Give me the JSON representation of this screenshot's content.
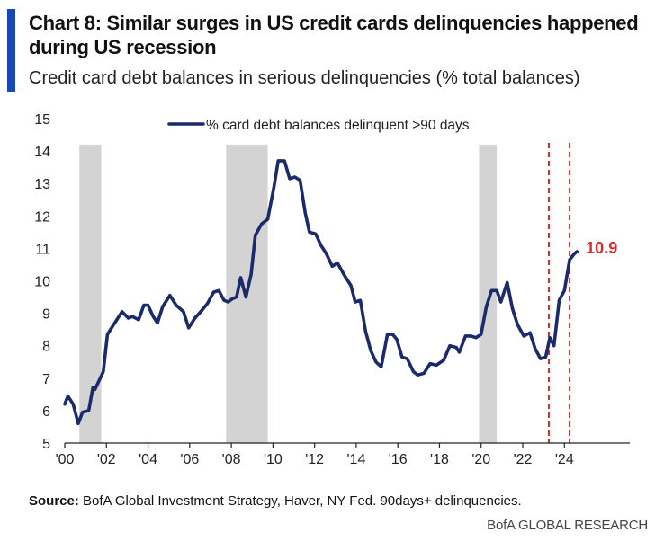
{
  "header": {
    "title": "Chart 8: Similar surges in US credit cards delinquencies happened during US recession",
    "subtitle": "Credit card debt balances in serious delinquencies (% total balances)"
  },
  "footer": {
    "source_label": "Source:",
    "source_text": " BofA Global Investment Strategy, Haver, NY Fed. 90days+ delinquencies.",
    "brand": "BofA GLOBAL RESEARCH"
  },
  "colors": {
    "accent": "#1a47b8",
    "series": "#1b2a6b",
    "recession": "#d3d3d3",
    "marker": "#d42b2b",
    "axis": "#222222"
  },
  "chart_data": {
    "type": "line",
    "title": "",
    "xlabel": "",
    "ylabel": "",
    "ylim": [
      5,
      15
    ],
    "xlim": [
      2000.0,
      2025.5
    ],
    "y_ticks": [
      5,
      6,
      7,
      8,
      9,
      10,
      11,
      12,
      13,
      14,
      15
    ],
    "x_ticks": [
      2000,
      2002,
      2004,
      2006,
      2008,
      2010,
      2012,
      2014,
      2016,
      2018,
      2020,
      2022,
      2024
    ],
    "x_tick_labels": [
      "'00",
      "'02",
      "'04",
      "'06",
      "'08",
      "'10",
      "'12",
      "'14",
      "'16",
      "'18",
      "'20",
      "'22",
      "'24"
    ],
    "legend": {
      "placement": "top-center"
    },
    "grid": false,
    "recession_bands": [
      {
        "start": 2000.7,
        "end": 2001.75,
        "top": 14.2
      },
      {
        "start": 2007.75,
        "end": 2009.75,
        "top": 14.2
      },
      {
        "start": 2019.9,
        "end": 2020.75,
        "top": 14.2
      }
    ],
    "reference_lines": [
      2023.25,
      2024.25
    ],
    "end_label": {
      "x": 2024.6,
      "y": 10.9,
      "text": "10.9"
    },
    "series": [
      {
        "name": "% card debt balances delinquent >90 days",
        "x": [
          2000.0,
          2000.15,
          2000.4,
          2000.65,
          2000.85,
          2001.15,
          2001.35,
          2001.45,
          2001.85,
          2002.05,
          2002.3,
          2002.55,
          2002.75,
          2003.05,
          2003.25,
          2003.55,
          2003.8,
          2004.0,
          2004.25,
          2004.45,
          2004.7,
          2005.05,
          2005.35,
          2005.7,
          2005.95,
          2006.25,
          2006.6,
          2006.85,
          2007.15,
          2007.4,
          2007.65,
          2007.85,
          2008.05,
          2008.25,
          2008.45,
          2008.7,
          2008.95,
          2009.15,
          2009.45,
          2009.75,
          2010.05,
          2010.25,
          2010.55,
          2010.8,
          2011.05,
          2011.3,
          2011.55,
          2011.75,
          2012.05,
          2012.3,
          2012.55,
          2012.85,
          2013.1,
          2013.45,
          2013.75,
          2013.95,
          2014.2,
          2014.45,
          2014.7,
          2014.95,
          2015.2,
          2015.5,
          2015.75,
          2015.95,
          2016.2,
          2016.45,
          2016.75,
          2016.95,
          2017.25,
          2017.55,
          2017.85,
          2018.2,
          2018.5,
          2018.8,
          2018.95,
          2019.25,
          2019.5,
          2019.75,
          2020.0,
          2020.25,
          2020.5,
          2020.75,
          2020.95,
          2021.25,
          2021.5,
          2021.75,
          2022.05,
          2022.35,
          2022.6,
          2022.85,
          2023.1,
          2023.3,
          2023.5,
          2023.75,
          2024.0,
          2024.25,
          2024.5,
          2024.6
        ],
        "y": [
          6.2,
          6.45,
          6.2,
          5.6,
          5.95,
          6.0,
          6.7,
          6.65,
          7.2,
          8.35,
          8.6,
          8.85,
          9.05,
          8.85,
          8.9,
          8.8,
          9.25,
          9.25,
          8.9,
          8.7,
          9.2,
          9.55,
          9.25,
          9.05,
          8.55,
          8.85,
          9.1,
          9.3,
          9.65,
          9.7,
          9.4,
          9.35,
          9.45,
          9.5,
          10.1,
          9.5,
          10.2,
          11.4,
          11.75,
          11.9,
          12.9,
          13.7,
          13.7,
          13.15,
          13.2,
          13.1,
          12.1,
          11.5,
          11.45,
          11.1,
          10.85,
          10.45,
          10.55,
          10.15,
          9.85,
          9.35,
          9.4,
          8.45,
          7.85,
          7.5,
          7.35,
          8.35,
          8.35,
          8.2,
          7.65,
          7.6,
          7.2,
          7.1,
          7.15,
          7.45,
          7.4,
          7.55,
          8.0,
          7.95,
          7.8,
          8.3,
          8.3,
          8.25,
          8.35,
          9.2,
          9.7,
          9.7,
          9.35,
          9.95,
          9.15,
          8.65,
          8.3,
          8.4,
          7.9,
          7.6,
          7.65,
          8.25,
          8.0,
          9.4,
          9.7,
          10.65,
          10.85,
          10.9
        ]
      }
    ]
  }
}
